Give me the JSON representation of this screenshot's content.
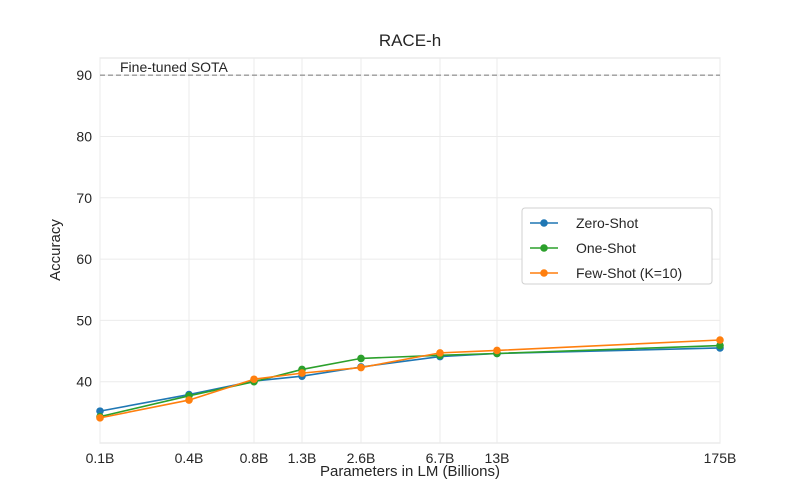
{
  "chart_data": {
    "type": "line",
    "title": "RACE-h",
    "xlabel": "Parameters in LM (Billions)",
    "ylabel": "Accuracy",
    "categories": [
      "0.1B",
      "0.4B",
      "0.8B",
      "1.3B",
      "2.6B",
      "6.7B",
      "13B",
      "175B"
    ],
    "ylim": [
      30,
      92.8
    ],
    "yticks": [
      40,
      50,
      60,
      70,
      80,
      90
    ],
    "grid": true,
    "legend_position": "center-right",
    "series": [
      {
        "name": "Zero-Shot",
        "color": "#1f77b4",
        "values": [
          35.2,
          37.9,
          40.1,
          40.9,
          42.4,
          44.1,
          44.6,
          45.5
        ]
      },
      {
        "name": "One-Shot",
        "color": "#2ca02c",
        "values": [
          34.3,
          37.7,
          40.0,
          42.0,
          43.8,
          44.3,
          44.6,
          45.9
        ]
      },
      {
        "name": "Few-Shot (K=10)",
        "color": "#ff7f0e",
        "values": [
          34.1,
          37.0,
          40.4,
          41.4,
          42.3,
          44.7,
          45.1,
          46.8
        ]
      }
    ],
    "reference_line": {
      "label": "Fine-tuned SOTA",
      "value": 90,
      "color": "#999999",
      "style": "dashed"
    }
  }
}
